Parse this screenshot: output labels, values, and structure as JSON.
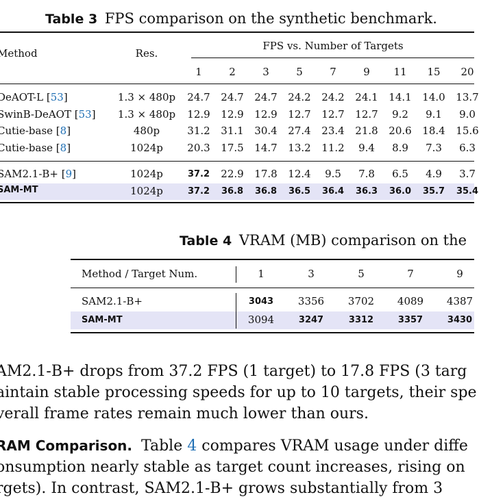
{
  "table3": {
    "caption_label": "Table 3",
    "caption_text": "FPS comparison on the synthetic benchmark.",
    "col_method": "Method",
    "col_res": "Res.",
    "group_header": "FPS vs. Number of Targets",
    "targets": [
      "1",
      "2",
      "3",
      "5",
      "7",
      "9",
      "11",
      "15",
      "20"
    ],
    "rows": [
      {
        "name": "DeAOT-L",
        "ref": "53",
        "res": "1.3 × 480p",
        "vals": [
          "24.7",
          "24.7",
          "24.7",
          "24.2",
          "24.2",
          "24.1",
          "14.1",
          "14.0",
          "13.7"
        ]
      },
      {
        "name": "SwinB-DeAOT",
        "ref": "53",
        "res": "1.3 × 480p",
        "vals": [
          "12.9",
          "12.9",
          "12.9",
          "12.7",
          "12.7",
          "12.7",
          "9.2",
          "9.1",
          "9.0"
        ]
      },
      {
        "name": "Cutie-base",
        "ref": "8",
        "res": "480p",
        "vals": [
          "31.2",
          "31.1",
          "30.4",
          "27.4",
          "23.4",
          "21.8",
          "20.6",
          "18.4",
          "15.6"
        ]
      },
      {
        "name": "Cutie-base",
        "ref": "8",
        "res": "1024p",
        "vals": [
          "20.3",
          "17.5",
          "14.7",
          "13.2",
          "11.2",
          "9.4",
          "8.9",
          "7.3",
          "6.3"
        ]
      },
      {
        "name": "SAM2.1-B+",
        "ref": "9",
        "res": "1024p",
        "vals": [
          "37.2",
          "22.9",
          "17.8",
          "12.4",
          "9.5",
          "7.8",
          "6.5",
          "4.9",
          "3.7"
        ]
      },
      {
        "name": "SAM-MT",
        "ref": "",
        "res": "1024p",
        "vals": [
          "37.2",
          "36.8",
          "36.8",
          "36.5",
          "36.4",
          "36.3",
          "36.0",
          "35.7",
          "35.4"
        ]
      }
    ]
  },
  "table4": {
    "caption_label": "Table 4",
    "caption_text": "VRAM (MB) comparison on the",
    "col_method": "Method / Target Num.",
    "targets": [
      "1",
      "3",
      "5",
      "7",
      "9"
    ],
    "rows": [
      {
        "name": "SAM2.1-B+",
        "vals": [
          "3043",
          "3356",
          "3702",
          "4089",
          "4387"
        ]
      },
      {
        "name": "SAM-MT",
        "vals": [
          "3094",
          "3247",
          "3312",
          "3357",
          "3430"
        ]
      }
    ]
  },
  "body": {
    "line1": "AM2.1-B+ drops from 37.2 FPS (1 target) to 17.8 FPS (3 targ",
    "line2": "aintain stable processing speeds for up to 10 targets, their spe",
    "line3": "verall frame rates remain much lower than ours.",
    "para2_heading": "RAM Comparison.",
    "para2_table_word": "Table",
    "para2_ref": "4",
    "para2_rest": "compares VRAM usage under diffe",
    "line5": "onsumption nearly stable as target count increases, rising on",
    "line6": "rgets). In contrast, SAM2.1-B+ grows substantially from 3"
  }
}
